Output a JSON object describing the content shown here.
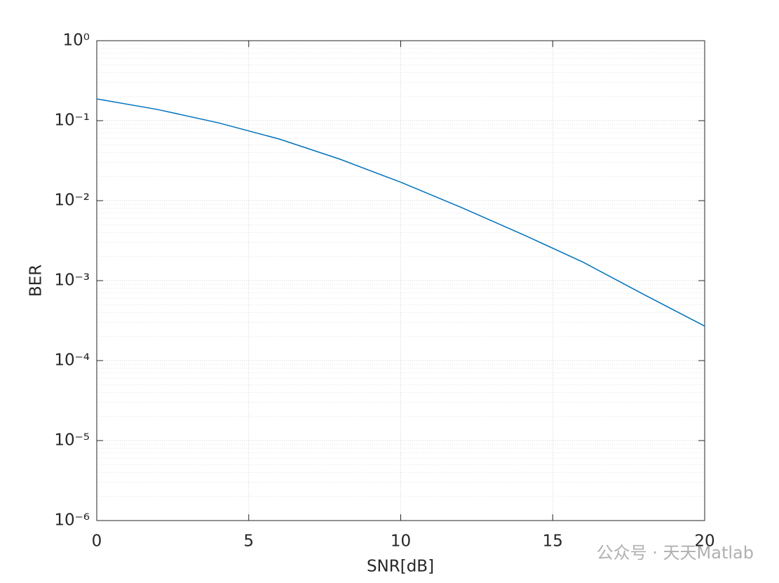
{
  "chart_data": {
    "type": "line",
    "x_label": "SNR[dB]",
    "y_label": "BER",
    "x": [
      0,
      2,
      4,
      6,
      8,
      10,
      12,
      14,
      16,
      18,
      20
    ],
    "series": [
      {
        "name": "BER",
        "color": "#0072bd",
        "values": [
          0.187,
          0.138,
          0.094,
          0.059,
          0.033,
          0.017,
          0.0082,
          0.0038,
          0.0017,
          0.00067,
          0.00027
        ]
      }
    ],
    "xlim": [
      0,
      20
    ],
    "xticks": [
      0,
      5,
      10,
      15,
      20
    ],
    "ylim": [
      1e-06,
      1
    ],
    "y_scale": "log",
    "yticks": [
      {
        "value": 1e-06,
        "label": "10⁻⁶"
      },
      {
        "value": 1e-05,
        "label": "10⁻⁵"
      },
      {
        "value": 0.0001,
        "label": "10⁻⁴"
      },
      {
        "value": 0.001,
        "label": "10⁻³"
      },
      {
        "value": 0.01,
        "label": "10⁻²"
      },
      {
        "value": 0.1,
        "label": "10⁻¹"
      },
      {
        "value": 1,
        "label": "10⁰"
      }
    ],
    "grid": true,
    "minor_grid": true,
    "watermark": "公众号 · 天天Matlab"
  }
}
